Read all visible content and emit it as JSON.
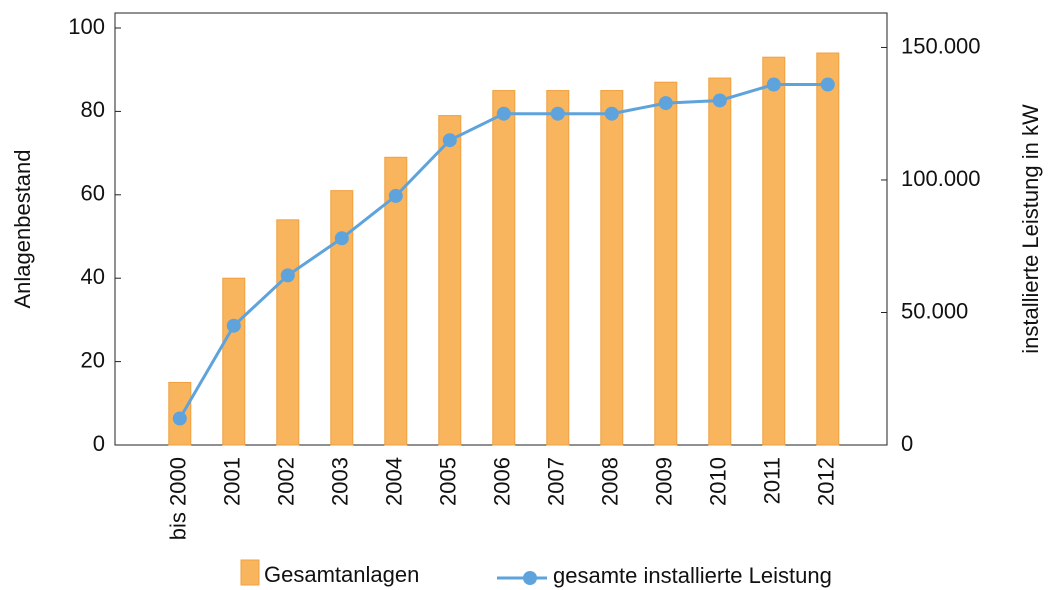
{
  "chart_data": {
    "type": "bar-line",
    "categories": [
      "bis 2000",
      "2001",
      "2002",
      "2003",
      "2004",
      "2005",
      "2006",
      "2007",
      "2008",
      "2009",
      "2010",
      "2011",
      "2012"
    ],
    "y_label": "Anlagenbestand",
    "y2_label": "installierte Leistung in kW",
    "ylim": [
      0,
      103.6
    ],
    "yticks": [
      0,
      20,
      40,
      60,
      80,
      100
    ],
    "y2lim": [
      0,
      163000
    ],
    "y2ticks": [
      0,
      {
        "value": 50000,
        "label": "50.000"
      },
      {
        "value": 100000,
        "label": "100.000"
      },
      {
        "value": 150000,
        "label": "150.000"
      }
    ],
    "series": [
      {
        "name": "Gesamtanlagen",
        "type": "bar",
        "color": "#f9b45e",
        "values": [
          15,
          40,
          54,
          61,
          69,
          79,
          85,
          85,
          85,
          87,
          88,
          93,
          94
        ]
      },
      {
        "name": "gesamte installierte Leistung",
        "type": "line",
        "axis": "y2",
        "color": "#5ea3dc",
        "values": [
          10000,
          45000,
          64000,
          78000,
          94000,
          115000,
          125000,
          125000,
          125000,
          129000,
          130000,
          136000,
          136000
        ]
      }
    ]
  }
}
